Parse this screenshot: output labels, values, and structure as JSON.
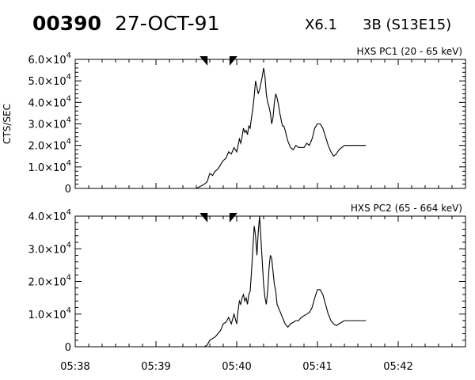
{
  "header": {
    "event_id": "00390",
    "date": "27-OCT-91",
    "flare_class": "X6.1",
    "flare_info": "3B (S13E15)"
  },
  "chart_data": [
    {
      "type": "line",
      "title": "HXS PC1 (20 - 65 keV)",
      "ylabel": "CTS/SEC",
      "xlabel": "",
      "xlim": [
        "05:38",
        "05:42:50"
      ],
      "ylim": [
        0,
        60000
      ],
      "y_ticks": [
        {
          "value": 0,
          "label": "0"
        },
        {
          "value": 10000,
          "mant": "1.0",
          "exp": "4"
        },
        {
          "value": 20000,
          "mant": "2.0",
          "exp": "4"
        },
        {
          "value": 30000,
          "mant": "3.0",
          "exp": "4"
        },
        {
          "value": 40000,
          "mant": "4.0",
          "exp": "4"
        },
        {
          "value": 50000,
          "mant": "5.0",
          "exp": "4"
        },
        {
          "value": 60000,
          "mant": "6.0",
          "exp": "4"
        }
      ],
      "markers": [
        "05:39:36",
        "05:39:57"
      ],
      "series": [
        {
          "x": [
            "05:39:30",
            "05:39:33",
            "05:39:36",
            "05:39:38",
            "05:39:40",
            "05:39:42",
            "05:39:44",
            "05:39:46",
            "05:39:48",
            "05:39:50",
            "05:39:52",
            "05:39:54",
            "05:39:56",
            "05:39:58",
            "05:40:00",
            "05:40:01",
            "05:40:02",
            "05:40:03",
            "05:40:04",
            "05:40:05",
            "05:40:06",
            "05:40:07",
            "05:40:08",
            "05:40:09",
            "05:40:10",
            "05:40:11",
            "05:40:12",
            "05:40:13",
            "05:40:14",
            "05:40:15",
            "05:40:16",
            "05:40:17",
            "05:40:18",
            "05:40:19",
            "05:40:20",
            "05:40:21",
            "05:40:22",
            "05:40:23",
            "05:40:24",
            "05:40:25",
            "05:40:26",
            "05:40:27",
            "05:40:28",
            "05:40:29",
            "05:40:30",
            "05:40:31",
            "05:40:32",
            "05:40:33",
            "05:40:34",
            "05:40:35",
            "05:40:36",
            "05:40:38",
            "05:40:40",
            "05:40:42",
            "05:40:44",
            "05:40:46",
            "05:40:48",
            "05:40:50",
            "05:40:52",
            "05:40:54",
            "05:40:56",
            "05:40:58",
            "05:41:00",
            "05:41:02",
            "05:41:04",
            "05:41:06",
            "05:41:08",
            "05:41:10",
            "05:41:12",
            "05:41:14",
            "05:41:16",
            "05:41:18",
            "05:41:20",
            "05:41:22",
            "05:41:24",
            "05:41:26",
            "05:41:28",
            "05:41:30",
            "05:41:32",
            "05:41:34",
            "05:41:36"
          ],
          "y": [
            0,
            1000,
            2000,
            3000,
            7000,
            6000,
            8000,
            9000,
            11000,
            13000,
            14000,
            17000,
            16000,
            19000,
            17000,
            20000,
            23000,
            21000,
            24000,
            28000,
            26000,
            27000,
            25000,
            29000,
            28000,
            33000,
            37000,
            43000,
            50000,
            47000,
            44000,
            46000,
            49000,
            52000,
            56000,
            52000,
            44000,
            40000,
            38000,
            35000,
            30000,
            33000,
            40000,
            44000,
            42000,
            39000,
            35000,
            32000,
            29000,
            29000,
            27000,
            22000,
            19000,
            18000,
            20000,
            19000,
            19000,
            19000,
            21000,
            20000,
            23000,
            28000,
            30000,
            30000,
            28000,
            24000,
            20000,
            17000,
            15000,
            16000,
            18000,
            19000,
            20000,
            20000,
            20000,
            20000,
            20000,
            20000,
            20000,
            20000,
            20000
          ]
        }
      ]
    },
    {
      "type": "line",
      "title": "HXS PC2 (65 - 664 keV)",
      "ylabel": "",
      "xlabel": "",
      "xlim": [
        "05:38",
        "05:42:50"
      ],
      "ylim": [
        0,
        40000
      ],
      "y_ticks": [
        {
          "value": 0,
          "label": "0"
        },
        {
          "value": 10000,
          "mant": "1.0",
          "exp": "4"
        },
        {
          "value": 20000,
          "mant": "2.0",
          "exp": "4"
        },
        {
          "value": 30000,
          "mant": "3.0",
          "exp": "4"
        },
        {
          "value": 40000,
          "mant": "4.0",
          "exp": "4"
        }
      ],
      "x_ticks": [
        "05:38",
        "05:39",
        "05:40",
        "05:41",
        "05:42"
      ],
      "markers": [
        "05:39:36",
        "05:39:57"
      ],
      "series": [
        {
          "x": [
            "05:39:30",
            "05:39:33",
            "05:39:36",
            "05:39:38",
            "05:39:40",
            "05:39:42",
            "05:39:44",
            "05:39:46",
            "05:39:48",
            "05:39:50",
            "05:39:52",
            "05:39:54",
            "05:39:56",
            "05:39:58",
            "05:40:00",
            "05:40:01",
            "05:40:02",
            "05:40:03",
            "05:40:04",
            "05:40:05",
            "05:40:06",
            "05:40:07",
            "05:40:08",
            "05:40:09",
            "05:40:10",
            "05:40:11",
            "05:40:12",
            "05:40:13",
            "05:40:14",
            "05:40:15",
            "05:40:16",
            "05:40:17",
            "05:40:18",
            "05:40:19",
            "05:40:20",
            "05:40:21",
            "05:40:22",
            "05:40:23",
            "05:40:24",
            "05:40:25",
            "05:40:26",
            "05:40:27",
            "05:40:28",
            "05:40:29",
            "05:40:30",
            "05:40:31",
            "05:40:32",
            "05:40:33",
            "05:40:34",
            "05:40:35",
            "05:40:36",
            "05:40:38",
            "05:40:40",
            "05:40:42",
            "05:40:44",
            "05:40:46",
            "05:40:48",
            "05:40:50",
            "05:40:52",
            "05:40:54",
            "05:40:56",
            "05:40:58",
            "05:41:00",
            "05:41:02",
            "05:41:04",
            "05:41:06",
            "05:41:08",
            "05:41:10",
            "05:41:12",
            "05:41:14",
            "05:41:16",
            "05:41:18",
            "05:41:20",
            "05:41:22",
            "05:41:24",
            "05:41:26",
            "05:41:28",
            "05:41:30",
            "05:41:32",
            "05:41:34",
            "05:41:36"
          ],
          "y": [
            0,
            0,
            0,
            500,
            2000,
            2500,
            3000,
            4000,
            5000,
            7000,
            7500,
            9000,
            7000,
            10000,
            7000,
            11000,
            14000,
            13000,
            15000,
            16000,
            14000,
            15000,
            13000,
            16000,
            17000,
            23000,
            30000,
            37000,
            34000,
            28000,
            35000,
            40000,
            33000,
            26000,
            19000,
            15000,
            13000,
            17000,
            24000,
            28000,
            27000,
            23000,
            19000,
            17000,
            13000,
            12000,
            11000,
            10000,
            9000,
            8000,
            7000,
            6000,
            7000,
            7500,
            8000,
            8000,
            9000,
            9500,
            10000,
            10500,
            12000,
            15000,
            17500,
            17500,
            16000,
            13000,
            10000,
            8000,
            7000,
            6500,
            7000,
            7500,
            8000,
            8000,
            8000,
            8000,
            8000,
            8000,
            8000,
            8000,
            8000
          ]
        }
      ]
    }
  ]
}
